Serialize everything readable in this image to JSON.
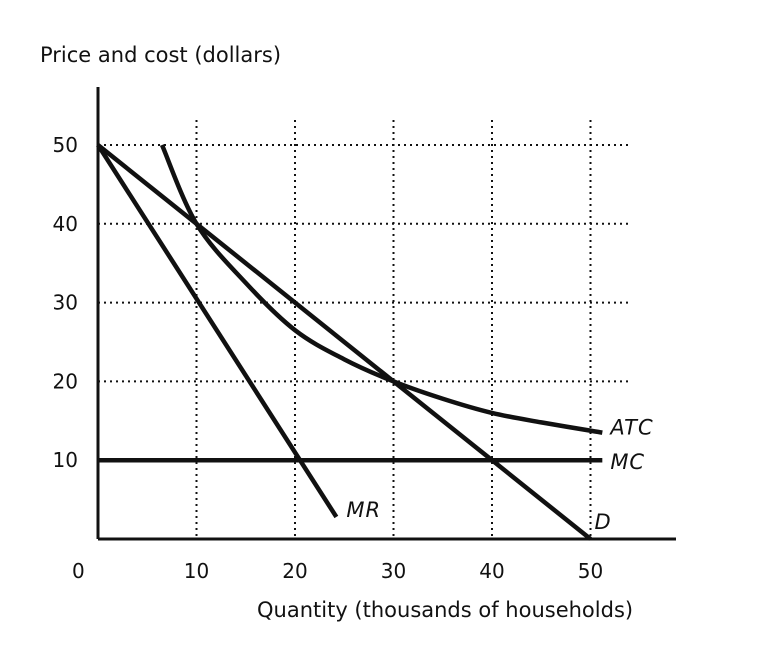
{
  "chart_data": {
    "type": "line",
    "ylabel": "Price and cost (dollars)",
    "xlabel": "Quantity (thousands of households)",
    "origin_label": "0",
    "xlim": [
      0,
      58
    ],
    "ylim": [
      0,
      58
    ],
    "x_ticks": [
      10,
      20,
      30,
      40,
      50
    ],
    "y_ticks": [
      10,
      20,
      30,
      40,
      50
    ],
    "x_tick_labels": [
      "10",
      "20",
      "30",
      "40",
      "50"
    ],
    "y_tick_labels": [
      "10",
      "20",
      "30",
      "40",
      "50"
    ],
    "grid": {
      "vertical_at_x": [
        10,
        20,
        30,
        40,
        50
      ],
      "horizontal_at_y": [
        20,
        30,
        40,
        50
      ],
      "style": "dotted"
    },
    "series": [
      {
        "name": "D",
        "x": [
          0,
          50
        ],
        "y": [
          50,
          0
        ]
      },
      {
        "name": "MR",
        "x": [
          0,
          24.2
        ],
        "y": [
          50,
          2.8
        ]
      },
      {
        "name": "MC",
        "x": [
          0,
          51.2
        ],
        "y": [
          10,
          10
        ]
      },
      {
        "name": "ATC",
        "x": [
          6.5,
          10,
          15,
          20,
          25,
          30,
          35,
          40,
          45,
          51.2
        ],
        "y": [
          50,
          40,
          32.5,
          26.5,
          22.8,
          20,
          17.8,
          16,
          14.8,
          13.5
        ]
      }
    ]
  }
}
